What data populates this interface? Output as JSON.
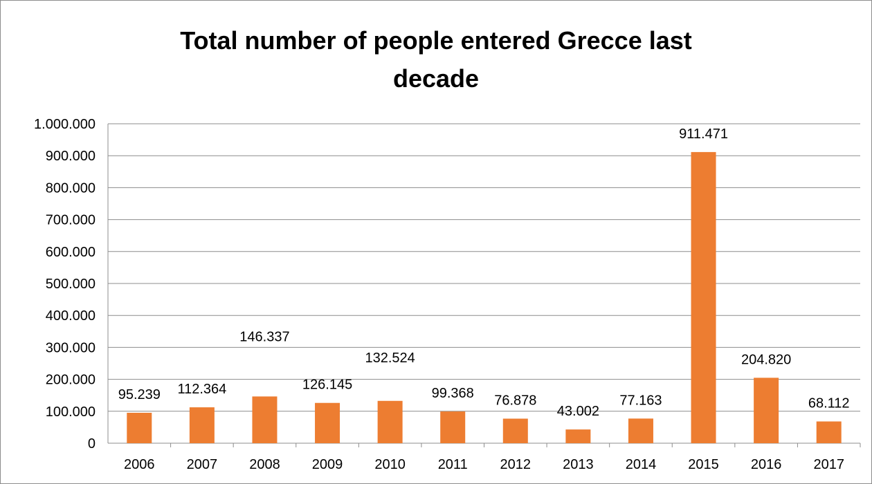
{
  "chart_data": {
    "type": "bar",
    "title_lines": [
      "Total number of people entered Grecce last",
      "decade"
    ],
    "categories": [
      "2006",
      "2007",
      "2008",
      "2009",
      "2010",
      "2011",
      "2012",
      "2013",
      "2014",
      "2015",
      "2016",
      "2017"
    ],
    "values": [
      95239,
      112364,
      146337,
      126145,
      132524,
      99368,
      76878,
      43002,
      77163,
      911471,
      204820,
      68112
    ],
    "value_labels": [
      "95.239",
      "112.364",
      "146.337",
      "126.145",
      "132.524",
      "99.368",
      "76.878",
      "43.002",
      "77.163",
      "911.471",
      "204.820",
      "68.112"
    ],
    "ylim": [
      0,
      1000000
    ],
    "y_ticks": [
      0,
      100000,
      200000,
      300000,
      400000,
      500000,
      600000,
      700000,
      800000,
      900000,
      1000000
    ],
    "y_tick_labels": [
      "0",
      "100.000",
      "200.000",
      "300.000",
      "400.000",
      "500.000",
      "600.000",
      "700.000",
      "800.000",
      "900.000",
      "1.000.000"
    ],
    "grid": true,
    "legend": "none",
    "bar_color": "#ed7d31"
  }
}
